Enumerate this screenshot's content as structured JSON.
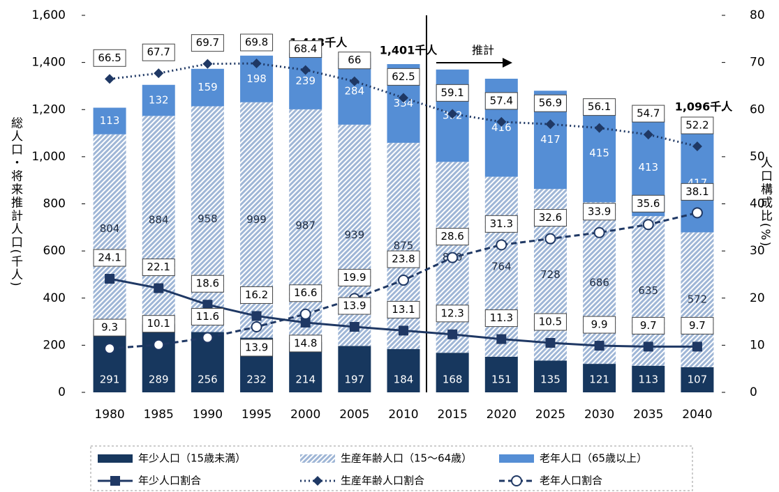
{
  "chart_data": {
    "type": "bar",
    "y_label": "総人口・将来推計人口(千人)",
    "y2_label": "人口構成比(%)",
    "annotations": [
      "1,443千人",
      "1,401千人",
      "1,096千人",
      "推計"
    ],
    "categories": [
      "1980",
      "1985",
      "1990",
      "1995",
      "2000",
      "2005",
      "2010",
      "2015",
      "2020",
      "2025",
      "2030",
      "2035",
      "2040"
    ],
    "series": [
      {
        "name": "年少人口（15歳未満）",
        "type": "bar",
        "color": "#17375e",
        "fill": "solid",
        "label_color": "#ffffff",
        "values": [
          291,
          289,
          256,
          232,
          214,
          197,
          184,
          168,
          151,
          135,
          121,
          113,
          107
        ]
      },
      {
        "name": "生産年齢人口（15～64歳）",
        "type": "bar",
        "color": "#9fb6d6",
        "fill": "hatched",
        "label_color": "#1f2d44",
        "values": [
          804,
          884,
          958,
          999,
          987,
          939,
          875,
          810,
          764,
          728,
          686,
          635,
          572
        ]
      },
      {
        "name": "老年人口（65歳以上）",
        "type": "bar",
        "color": "#558ed5",
        "fill": "solid",
        "label_color": "#ffffff",
        "values": [
          113,
          132,
          159,
          198,
          239,
          284,
          334,
          392,
          416,
          417,
          415,
          413,
          417
        ]
      },
      {
        "name": "年少人口割合",
        "type": "line",
        "axis": "y2",
        "color": "#1f3864",
        "line_style": "solid",
        "marker": "square",
        "values": [
          24.1,
          22.1,
          18.6,
          16.2,
          14.8,
          13.9,
          13.1,
          12.3,
          11.3,
          10.5,
          9.9,
          9.7,
          9.7
        ]
      },
      {
        "name": "生産年齢人口割合",
        "type": "line",
        "axis": "y2",
        "color": "#1f3864",
        "line_style": "dotted",
        "marker": "diamond",
        "values": [
          66.5,
          67.7,
          69.7,
          69.8,
          68.4,
          66.0,
          62.5,
          59.1,
          57.4,
          56.9,
          56.1,
          54.7,
          52.2
        ]
      },
      {
        "name": "老年人口割合",
        "type": "line",
        "axis": "y2",
        "color": "#1f3864",
        "line_style": "dashed",
        "marker": "circle",
        "values": [
          9.3,
          10.1,
          11.6,
          13.9,
          16.6,
          19.9,
          23.8,
          28.6,
          31.3,
          32.6,
          33.9,
          35.6,
          38.1
        ]
      }
    ],
    "ylim": [
      0,
      1600
    ],
    "yticks": [
      0,
      200,
      400,
      600,
      800,
      {
        "value": 1000,
        "label": "1,000"
      },
      {
        "value": 1200,
        "label": "1,200"
      },
      {
        "value": 1400,
        "label": "1,400"
      },
      {
        "value": 1600,
        "label": "1,600"
      }
    ],
    "y2lim": [
      0,
      80
    ],
    "y2ticks": [
      0,
      10,
      20,
      30,
      40,
      50,
      60,
      70,
      80
    ],
    "grid": false
  }
}
